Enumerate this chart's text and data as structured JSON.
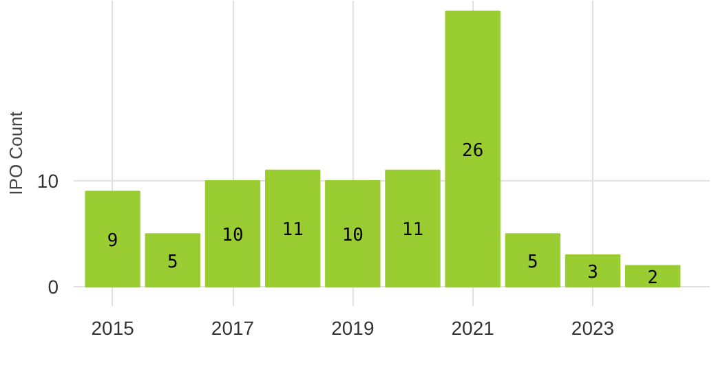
{
  "chart_data": {
    "type": "bar",
    "ylabel": "IPO Count",
    "x": [
      2015,
      2016,
      2017,
      2018,
      2019,
      2020,
      2021,
      2022,
      2023,
      2024
    ],
    "values": [
      9,
      5,
      10,
      11,
      10,
      11,
      26,
      5,
      3,
      2
    ],
    "color": "#9acd32",
    "xlim": [
      2014.35,
      2024.95
    ],
    "xticks": [
      2015,
      2017,
      2019,
      2021,
      2023
    ],
    "ylim": [
      -1.8,
      27
    ],
    "yticks": [
      0,
      10
    ],
    "grid": true,
    "data_labels": true
  }
}
